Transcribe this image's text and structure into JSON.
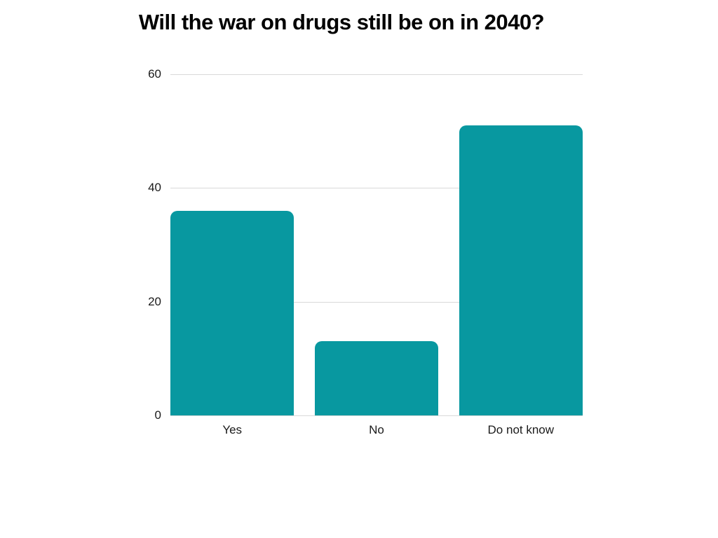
{
  "page": {
    "background_color": "#ffffff"
  },
  "chart_data": {
    "type": "bar",
    "title": "Will the war on drugs still be on in 2040?",
    "categories": [
      "Yes",
      "No",
      "Do not know"
    ],
    "values": [
      36,
      13,
      51
    ],
    "xlabel": "",
    "ylabel": "",
    "ylim": [
      0,
      60
    ],
    "yticks": [
      0,
      20,
      40,
      60
    ],
    "grid": true,
    "legend": false,
    "bar_color": "#0898A0",
    "gridline_color": "#d9d9d9",
    "tick_text_color": "#1a1a1a",
    "title_color": "#000000"
  }
}
